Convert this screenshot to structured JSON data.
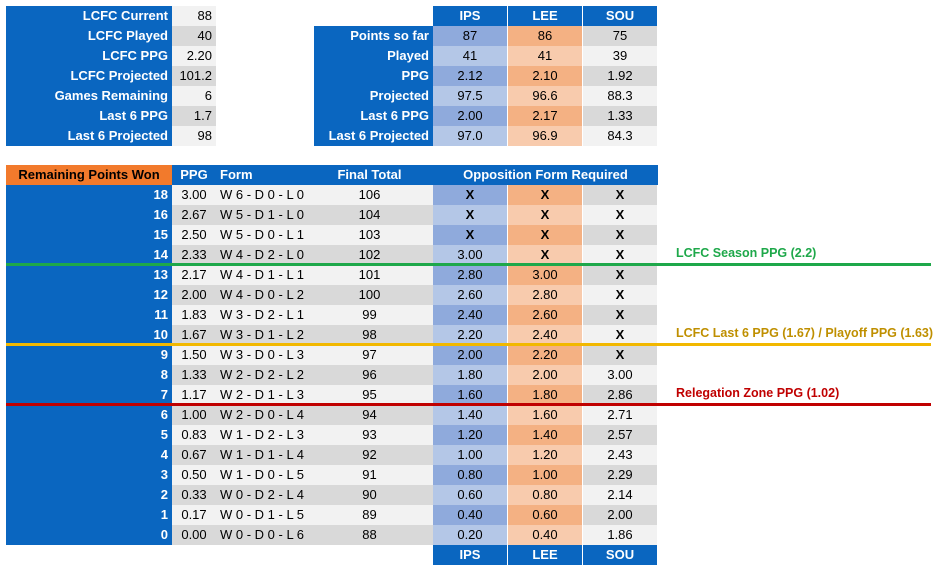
{
  "colors": {
    "header_blue": "#0a66c0",
    "orange_header": "#f27a2c",
    "row_light": "#f2f2f2",
    "row_dark": "#d9d9d9",
    "ips_light": "#b4c7e7",
    "ips_dark": "#8faadc",
    "lee_light": "#f8cbad",
    "lee_dark": "#f4b183",
    "sou_light": "#f2f2f2",
    "sou_dark": "#d9d9d9",
    "green_line": "#1ea84a",
    "yellow_line": "#f2b800",
    "red_line": "#c00000"
  },
  "lcfc_stats": [
    {
      "label": "LCFC Current",
      "value": "88"
    },
    {
      "label": "LCFC Played",
      "value": "40"
    },
    {
      "label": "LCFC PPG",
      "value": "2.20"
    },
    {
      "label": "LCFC Projected",
      "value": "101.2"
    },
    {
      "label": "Games Remaining",
      "value": "6"
    },
    {
      "label": "Last 6 PPG",
      "value": "1.7"
    },
    {
      "label": "Last 6 Projected",
      "value": "98"
    }
  ],
  "rivals": {
    "teams": [
      "IPS",
      "LEE",
      "SOU"
    ],
    "rows": [
      {
        "label": "Points so far",
        "values": [
          "87",
          "86",
          "75"
        ]
      },
      {
        "label": "Played",
        "values": [
          "41",
          "41",
          "39"
        ]
      },
      {
        "label": "PPG",
        "values": [
          "2.12",
          "2.10",
          "1.92"
        ]
      },
      {
        "label": "Projected",
        "values": [
          "97.5",
          "96.6",
          "88.3"
        ]
      },
      {
        "label": "Last 6 PPG",
        "values": [
          "2.00",
          "2.17",
          "1.33"
        ]
      },
      {
        "label": "Last 6 Projected",
        "values": [
          "97.0",
          "96.9",
          "84.3"
        ]
      }
    ]
  },
  "scenarios": {
    "headers": {
      "points": "Remaining Points Won",
      "ppg": "PPG",
      "form": "Form",
      "final": "Final Total",
      "opposition": "Opposition Form Required"
    },
    "footer_teams": [
      "IPS",
      "LEE",
      "SOU"
    ],
    "rows": [
      {
        "points": "18",
        "ppg": "3.00",
        "form": "W 6 - D 0 - L 0",
        "final": "106",
        "ips": "X",
        "lee": "X",
        "sou": "X"
      },
      {
        "points": "16",
        "ppg": "2.67",
        "form": "W 5 - D 1 - L 0",
        "final": "104",
        "ips": "X",
        "lee": "X",
        "sou": "X"
      },
      {
        "points": "15",
        "ppg": "2.50",
        "form": "W 5 - D 0 - L 1",
        "final": "103",
        "ips": "X",
        "lee": "X",
        "sou": "X"
      },
      {
        "points": "14",
        "ppg": "2.33",
        "form": "W 4 - D 2 - L 0",
        "final": "102",
        "ips": "3.00",
        "lee": "X",
        "sou": "X"
      },
      {
        "points": "13",
        "ppg": "2.17",
        "form": "W 4 - D 1 - L 1",
        "final": "101",
        "ips": "2.80",
        "lee": "3.00",
        "sou": "X"
      },
      {
        "points": "12",
        "ppg": "2.00",
        "form": "W 4 - D 0 - L 2",
        "final": "100",
        "ips": "2.60",
        "lee": "2.80",
        "sou": "X"
      },
      {
        "points": "11",
        "ppg": "1.83",
        "form": "W 3 - D 2 - L 1",
        "final": "99",
        "ips": "2.40",
        "lee": "2.60",
        "sou": "X"
      },
      {
        "points": "10",
        "ppg": "1.67",
        "form": "W 3 - D 1 - L 2",
        "final": "98",
        "ips": "2.20",
        "lee": "2.40",
        "sou": "X"
      },
      {
        "points": "9",
        "ppg": "1.50",
        "form": "W 3 - D 0 - L 3",
        "final": "97",
        "ips": "2.00",
        "lee": "2.20",
        "sou": "X"
      },
      {
        "points": "8",
        "ppg": "1.33",
        "form": "W 2 - D 2 - L 2",
        "final": "96",
        "ips": "1.80",
        "lee": "2.00",
        "sou": "3.00"
      },
      {
        "points": "7",
        "ppg": "1.17",
        "form": "W 2 - D 1 - L 3",
        "final": "95",
        "ips": "1.60",
        "lee": "1.80",
        "sou": "2.86"
      },
      {
        "points": "6",
        "ppg": "1.00",
        "form": "W 2 - D 0 - L 4",
        "final": "94",
        "ips": "1.40",
        "lee": "1.60",
        "sou": "2.71"
      },
      {
        "points": "5",
        "ppg": "0.83",
        "form": "W 1 - D 2 - L 3",
        "final": "93",
        "ips": "1.20",
        "lee": "1.40",
        "sou": "2.57"
      },
      {
        "points": "4",
        "ppg": "0.67",
        "form": "W 1 - D 1 - L 4",
        "final": "92",
        "ips": "1.00",
        "lee": "1.20",
        "sou": "2.43"
      },
      {
        "points": "3",
        "ppg": "0.50",
        "form": "W 1 - D 0 - L 5",
        "final": "91",
        "ips": "0.80",
        "lee": "1.00",
        "sou": "2.29"
      },
      {
        "points": "2",
        "ppg": "0.33",
        "form": "W 0 - D 2 - L 4",
        "final": "90",
        "ips": "0.60",
        "lee": "0.80",
        "sou": "2.14"
      },
      {
        "points": "1",
        "ppg": "0.17",
        "form": "W 0 - D 1 - L 5",
        "final": "89",
        "ips": "0.40",
        "lee": "0.60",
        "sou": "2.00"
      },
      {
        "points": "0",
        "ppg": "0.00",
        "form": "W 0 - D 0 - L 6",
        "final": "88",
        "ips": "0.20",
        "lee": "0.40",
        "sou": "1.86"
      }
    ]
  },
  "threshold_lines": [
    {
      "label": "LCFC Season PPG (2.2)",
      "color": "#1ea84a",
      "after_row": 3
    },
    {
      "label": "LCFC Last 6 PPG (1.67) / Playoff PPG (1.63)",
      "color": "#f2b800",
      "after_row": 7
    },
    {
      "label": "Relegation Zone PPG (1.02)",
      "color": "#c00000",
      "after_row": 10
    }
  ]
}
